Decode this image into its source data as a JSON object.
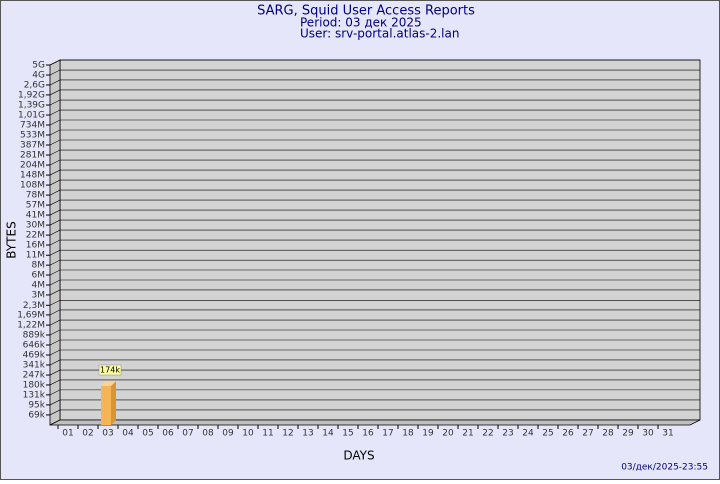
{
  "chart_data": {
    "type": "bar",
    "title": "SARG, Squid User Access Reports",
    "subtitle": "Period: 03 дек 2025",
    "user": "User: srv-portal.atlas-2.lan",
    "x_label": "DAYS",
    "y_label": "BYTES",
    "footer": "03/дек/2025-23:55",
    "categories": [
      "01",
      "02",
      "03",
      "04",
      "05",
      "06",
      "07",
      "08",
      "09",
      "10",
      "11",
      "12",
      "13",
      "14",
      "15",
      "16",
      "17",
      "18",
      "19",
      "20",
      "21",
      "22",
      "23",
      "24",
      "25",
      "26",
      "27",
      "28",
      "29",
      "30",
      "31"
    ],
    "values": [
      null,
      null,
      174000,
      null,
      null,
      null,
      null,
      null,
      null,
      null,
      null,
      null,
      null,
      null,
      null,
      null,
      null,
      null,
      null,
      null,
      null,
      null,
      null,
      null,
      null,
      null,
      null,
      null,
      null,
      null,
      null
    ],
    "value_labels": [
      null,
      null,
      "174k",
      null,
      null,
      null,
      null,
      null,
      null,
      null,
      null,
      null,
      null,
      null,
      null,
      null,
      null,
      null,
      null,
      null,
      null,
      null,
      null,
      null,
      null,
      null,
      null,
      null,
      null,
      null,
      null
    ],
    "color": "#f5b556",
    "log_scale": true,
    "grid": true,
    "ylim": [
      50000,
      5000000000
    ],
    "yticks": [
      {
        "value": 69000,
        "label": "69k"
      },
      {
        "value": 95000,
        "label": "95k"
      },
      {
        "value": 131000,
        "label": "131k"
      },
      {
        "value": 180000,
        "label": "180k"
      },
      {
        "value": 247000,
        "label": "247k"
      },
      {
        "value": 341000,
        "label": "341k"
      },
      {
        "value": 469000,
        "label": "469k"
      },
      {
        "value": 646000,
        "label": "646k"
      },
      {
        "value": 889000,
        "label": "889k"
      },
      {
        "value": 1220000,
        "label": "1,22M"
      },
      {
        "value": 1690000,
        "label": "1,69M"
      },
      {
        "value": 2300000,
        "label": "2,3M"
      },
      {
        "value": 3200000,
        "label": "3M"
      },
      {
        "value": 4400000,
        "label": "4M"
      },
      {
        "value": 6060000,
        "label": "6M"
      },
      {
        "value": 8300000,
        "label": "8M"
      },
      {
        "value": 11400000,
        "label": "11M"
      },
      {
        "value": 15800000,
        "label": "16M"
      },
      {
        "value": 21700000,
        "label": "22M"
      },
      {
        "value": 29900000,
        "label": "30M"
      },
      {
        "value": 41200000,
        "label": "41M"
      },
      {
        "value": 56700000,
        "label": "57M"
      },
      {
        "value": 78000000,
        "label": "78M"
      },
      {
        "value": 107500000,
        "label": "108M"
      },
      {
        "value": 148000000,
        "label": "148M"
      },
      {
        "value": 204000000,
        "label": "204M"
      },
      {
        "value": 281000000,
        "label": "281M"
      },
      {
        "value": 387000000,
        "label": "387M"
      },
      {
        "value": 533000000,
        "label": "533M"
      },
      {
        "value": 734000000,
        "label": "734M"
      },
      {
        "value": 1010000000,
        "label": "1,01G"
      },
      {
        "value": 1390000000,
        "label": "1,39G"
      },
      {
        "value": 1920000000,
        "label": "1,92G"
      },
      {
        "value": 2640000000,
        "label": "2,6G"
      },
      {
        "value": 3630000000,
        "label": "4G"
      },
      {
        "value": 5000000000,
        "label": "5G"
      }
    ]
  }
}
